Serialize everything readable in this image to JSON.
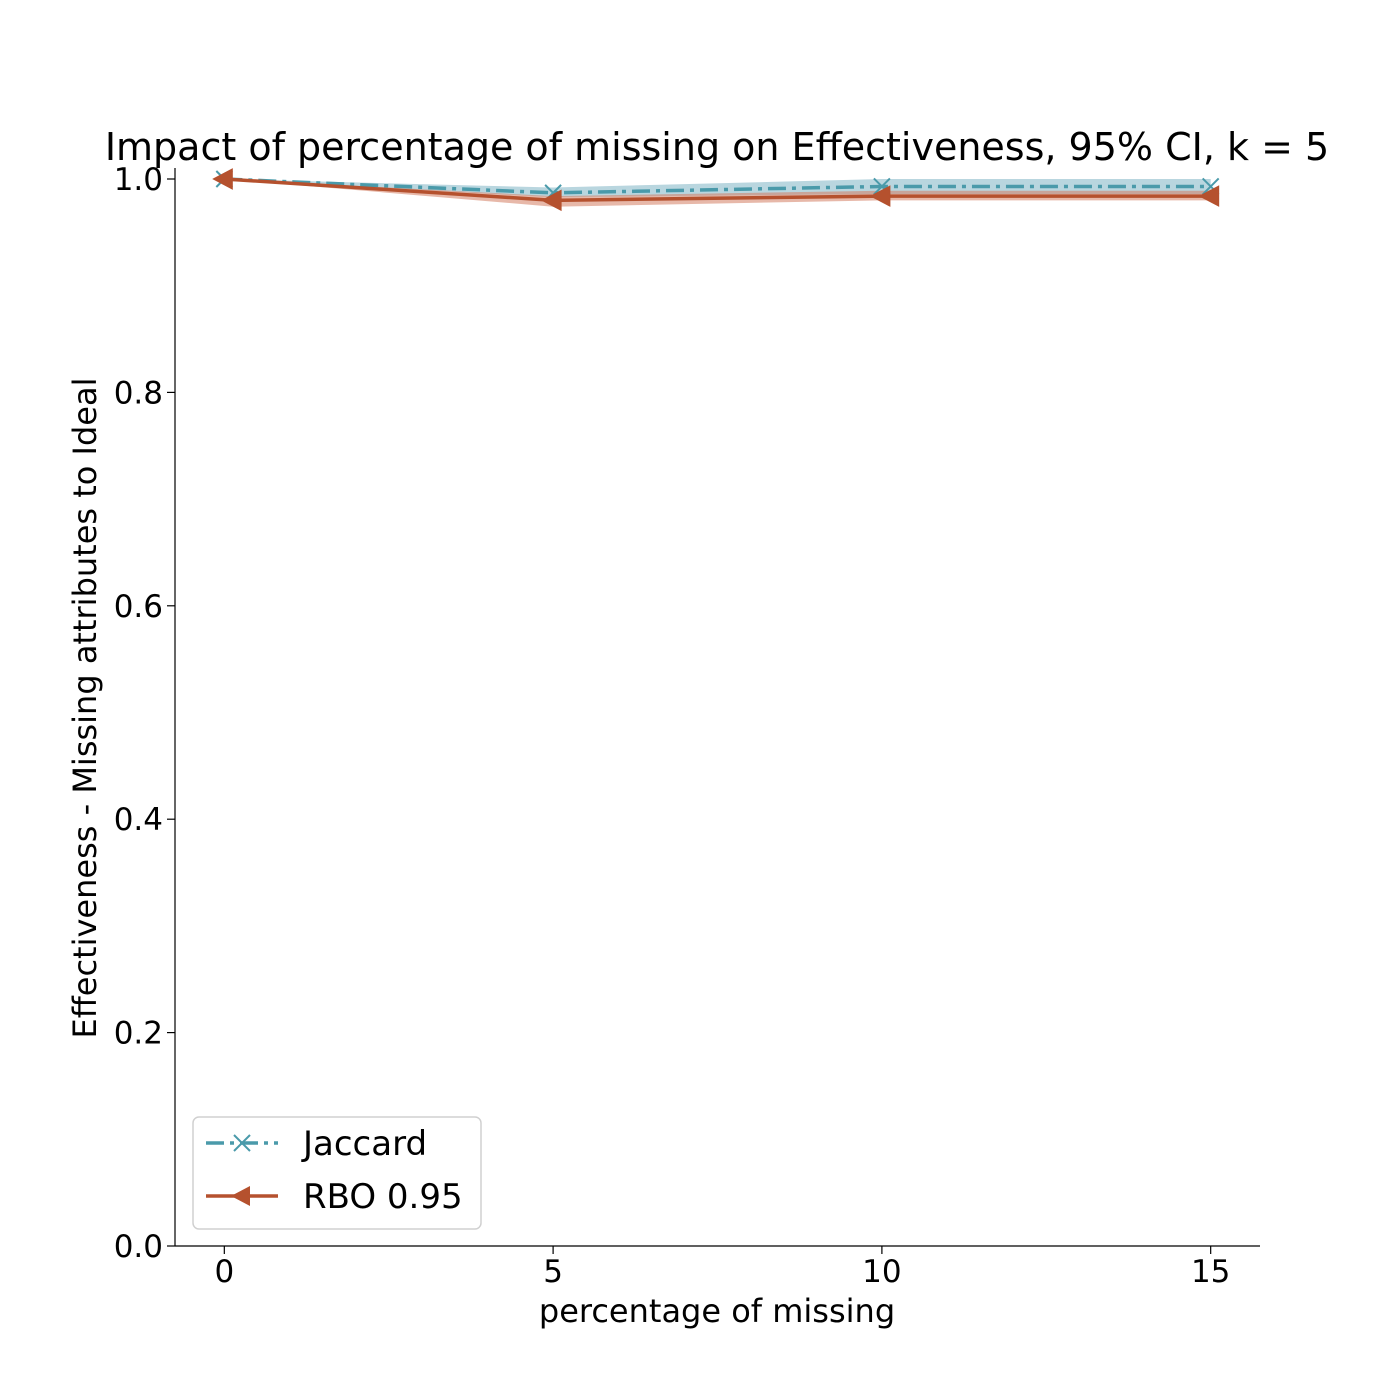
{
  "chart_data": {
    "type": "line",
    "title": "Impact of percentage of missing on Effectiveness, 95% CI, k = 5",
    "xlabel": "percentage of missing",
    "ylabel": "Effectiveness - Missing attributes to Ideal",
    "x": [
      0,
      5,
      10,
      15
    ],
    "xticks": [
      "0",
      "5",
      "10",
      "15"
    ],
    "yticks": [
      "0.0",
      "0.2",
      "0.4",
      "0.6",
      "0.8",
      "1.0"
    ],
    "xlim": [
      -0.75,
      15.75
    ],
    "ylim": [
      0.0,
      1.0
    ],
    "grid": false,
    "legend_position": "lower-left",
    "series": [
      {
        "name": "Jaccard",
        "values": [
          1.0,
          0.987,
          0.993,
          0.993
        ],
        "ci_lower": [
          1.0,
          0.983,
          0.986,
          0.986
        ],
        "ci_upper": [
          1.0,
          0.992,
          1.0,
          1.0
        ],
        "color": "#4a9aaa",
        "fill_color": "#7fb4c4",
        "line_style": "dashdot",
        "marker": "x"
      },
      {
        "name": "RBO 0.95",
        "values": [
          1.0,
          0.98,
          0.984,
          0.984
        ],
        "ci_lower": [
          1.0,
          0.974,
          0.98,
          0.98
        ],
        "ci_upper": [
          1.0,
          0.984,
          0.989,
          0.989
        ],
        "color": "#b5512e",
        "fill_color": "#d47e62",
        "line_style": "solid",
        "marker": "triangle-left"
      }
    ]
  }
}
